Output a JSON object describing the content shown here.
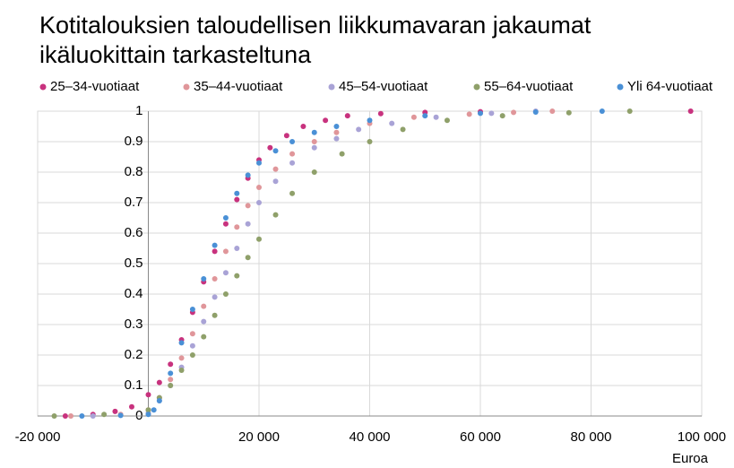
{
  "chart_data": {
    "type": "scatter",
    "title": [
      "Kotitalouksien taloudellisen liikkumavaran jakaumat",
      "ikäluokittain tarkasteltuna"
    ],
    "x_label": "Euroa",
    "legend": "top",
    "grid": true,
    "xlim": [
      -20000,
      100000
    ],
    "xticks": [
      {
        "value": -20000,
        "label": "-20 000"
      },
      {
        "value": 20000,
        "label": "20 000"
      },
      {
        "value": 40000,
        "label": "40 000"
      },
      {
        "value": 60000,
        "label": "60 000"
      },
      {
        "value": 80000,
        "label": "80 000"
      },
      {
        "value": 100000,
        "label": "100 000"
      }
    ],
    "ylim": [
      0,
      1
    ],
    "yticks": [
      0,
      0.1,
      0.2,
      0.3,
      0.4,
      0.5,
      0.6,
      0.7,
      0.8,
      0.9,
      1
    ],
    "series": [
      {
        "name": "25–34-vuotiaat",
        "color": "#c8327e",
        "x": [
          -15000,
          -10000,
          -6000,
          -3000,
          0,
          2000,
          4000,
          6000,
          8000,
          10000,
          12000,
          14000,
          16000,
          18000,
          20000,
          22000,
          25000,
          28000,
          32000,
          36000,
          42000,
          50000,
          60000,
          98000
        ],
        "values": [
          0,
          0.005,
          0.015,
          0.03,
          0.07,
          0.11,
          0.17,
          0.25,
          0.34,
          0.44,
          0.54,
          0.63,
          0.71,
          0.78,
          0.84,
          0.88,
          0.92,
          0.95,
          0.97,
          0.985,
          0.992,
          0.996,
          0.998,
          1
        ]
      },
      {
        "name": "35–44-vuotiaat",
        "color": "#e0969a",
        "x": [
          -14000,
          -5000,
          0,
          2000,
          4000,
          6000,
          8000,
          10000,
          12000,
          14000,
          16000,
          18000,
          20000,
          23000,
          26000,
          30000,
          34000,
          40000,
          48000,
          58000,
          66000,
          73000
        ],
        "values": [
          0,
          0.005,
          0.02,
          0.06,
          0.12,
          0.19,
          0.27,
          0.36,
          0.45,
          0.54,
          0.62,
          0.69,
          0.75,
          0.81,
          0.86,
          0.9,
          0.93,
          0.96,
          0.98,
          0.99,
          0.996,
          1
        ]
      },
      {
        "name": "45–54-vuotiaat",
        "color": "#a9a3d6",
        "x": [
          -10000,
          0,
          2000,
          4000,
          6000,
          8000,
          10000,
          12000,
          14000,
          16000,
          18000,
          20000,
          23000,
          26000,
          30000,
          34000,
          38000,
          44000,
          52000,
          62000,
          70000
        ],
        "values": [
          0,
          0.01,
          0.05,
          0.1,
          0.16,
          0.23,
          0.31,
          0.39,
          0.47,
          0.55,
          0.63,
          0.7,
          0.77,
          0.83,
          0.88,
          0.91,
          0.94,
          0.96,
          0.98,
          0.993,
          1
        ]
      },
      {
        "name": "55–64-vuotiaat",
        "color": "#8fa06a",
        "x": [
          -17000,
          -8000,
          0,
          2000,
          4000,
          6000,
          8000,
          10000,
          12000,
          14000,
          16000,
          18000,
          20000,
          23000,
          26000,
          30000,
          35000,
          40000,
          46000,
          54000,
          64000,
          76000,
          87000
        ],
        "values": [
          0,
          0.005,
          0.02,
          0.06,
          0.1,
          0.15,
          0.2,
          0.26,
          0.33,
          0.4,
          0.46,
          0.52,
          0.58,
          0.66,
          0.73,
          0.8,
          0.86,
          0.9,
          0.94,
          0.97,
          0.985,
          0.995,
          1
        ]
      },
      {
        "name": "Yli 64-vuotiaat",
        "color": "#4a90d6",
        "x": [
          -12000,
          -5000,
          0,
          1000,
          2000,
          4000,
          6000,
          8000,
          10000,
          12000,
          14000,
          16000,
          18000,
          20000,
          23000,
          26000,
          30000,
          34000,
          40000,
          50000,
          60000,
          70000,
          82000
        ],
        "values": [
          0,
          0.002,
          0.005,
          0.02,
          0.05,
          0.14,
          0.24,
          0.35,
          0.45,
          0.56,
          0.65,
          0.73,
          0.79,
          0.83,
          0.87,
          0.9,
          0.93,
          0.95,
          0.97,
          0.985,
          0.993,
          0.997,
          1
        ]
      }
    ]
  }
}
